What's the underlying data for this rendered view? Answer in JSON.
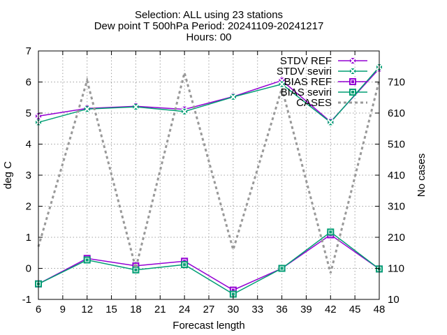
{
  "title_lines": [
    "Selection: ALL using    23 stations",
    "Dew point T 500hPa   Period: 20241109-20241217",
    "Hours: 00"
  ],
  "chart_data": {
    "type": "line",
    "xlabel": "Forecast length",
    "ylabel": "deg C",
    "y2label": "No cases",
    "x": [
      6,
      12,
      18,
      24,
      30,
      36,
      42,
      48
    ],
    "xticks": [
      6,
      9,
      12,
      15,
      18,
      21,
      24,
      27,
      30,
      33,
      36,
      39,
      42,
      45,
      48
    ],
    "xlim": [
      6,
      48
    ],
    "ylim": [
      -1,
      7
    ],
    "yticks": [
      -1,
      0,
      1,
      2,
      3,
      4,
      5,
      6,
      7
    ],
    "y2lim": [
      10,
      810
    ],
    "y2ticks": [
      10,
      110,
      210,
      310,
      410,
      510,
      610,
      710
    ],
    "grid": true,
    "legend_position": "top-right",
    "series": [
      {
        "name": "STDV REF",
        "axis": "y",
        "color": "#9400d3",
        "marker": "x",
        "values": [
          4.9,
          5.15,
          5.22,
          5.12,
          5.53,
          6.05,
          4.72,
          6.43
        ]
      },
      {
        "name": "STDV seviri",
        "axis": "y",
        "color": "#009e73",
        "marker": "x",
        "values": [
          4.7,
          5.13,
          5.2,
          5.05,
          5.52,
          5.93,
          4.7,
          6.48
        ]
      },
      {
        "name": "BIAS REF",
        "axis": "y",
        "color": "#9400d3",
        "marker": "square",
        "values": [
          -0.5,
          0.32,
          0.08,
          0.23,
          -0.7,
          0.0,
          1.08,
          -0.02
        ]
      },
      {
        "name": "BIAS seviri",
        "axis": "y",
        "color": "#009e73",
        "marker": "square",
        "values": [
          -0.5,
          0.27,
          -0.05,
          0.12,
          -0.83,
          0.0,
          1.17,
          -0.02
        ]
      },
      {
        "name": "CASES",
        "axis": "y2",
        "color": "#999999",
        "marker": "none",
        "dashed": true,
        "values": [
          180,
          715,
          110,
          740,
          170,
          690,
          95,
          715
        ]
      }
    ]
  }
}
